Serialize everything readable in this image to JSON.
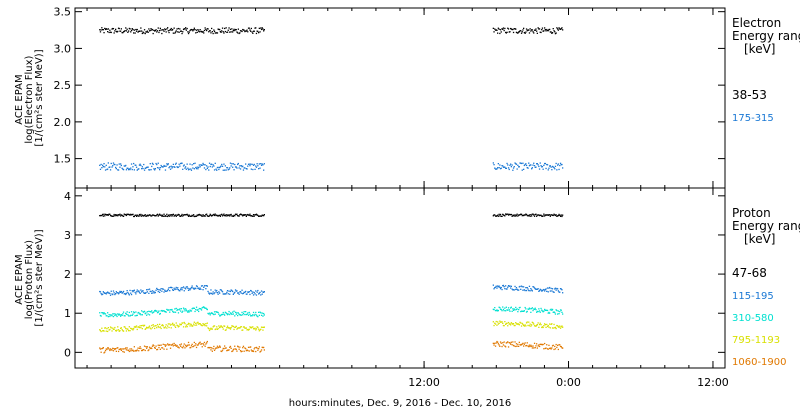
{
  "chart_data": [
    {
      "type": "scatter",
      "ylabel_lines": [
        "ACE EPAM",
        "log(Electron Flux)",
        "[1/(cm²s ster MeV)]"
      ],
      "ylim": [
        1.1,
        3.55
      ],
      "yticks": [
        1.5,
        2.0,
        2.5,
        3.0,
        3.5
      ],
      "ytick_labels": [
        "1.5",
        "2.0",
        "2.5",
        "3.0",
        "3.5"
      ],
      "legend_title": [
        "Electron",
        "Energy ranges",
        "[keV]"
      ],
      "series": [
        {
          "name": "38-53",
          "color": "#000000",
          "value": 3.25,
          "noise": 0.04
        },
        {
          "name": "175-315",
          "color": "#1a78d4",
          "value": 1.4,
          "noise": 0.05
        }
      ],
      "data_segments_hours": [
        [
          -15,
          -1.3
        ],
        [
          17.7,
          23.5
        ]
      ]
    },
    {
      "type": "scatter",
      "ylabel_lines": [
        "ACE EPAM",
        "log(Proton Flux)",
        "[1/(cm²s ster MeV)]"
      ],
      "ylim": [
        -0.4,
        4.2
      ],
      "yticks": [
        0,
        1,
        2,
        3,
        4
      ],
      "ytick_labels": [
        "0",
        "1",
        "2",
        "3",
        "4"
      ],
      "legend_title": [
        "Proton",
        "Energy ranges",
        "[keV]"
      ],
      "series": [
        {
          "name": "47-68",
          "color": "#000000",
          "value": 3.52,
          "noise": 0.03
        },
        {
          "name": "115-195",
          "color": "#1a78d4",
          "value": 1.6,
          "noise": 0.06
        },
        {
          "name": "310-580",
          "color": "#00e0d0",
          "value": 1.05,
          "noise": 0.06
        },
        {
          "name": "795-1193",
          "color": "#d8e000",
          "value": 0.68,
          "noise": 0.06
        },
        {
          "name": "1060-1900",
          "color": "#e07800",
          "value": 0.15,
          "noise": 0.07
        }
      ],
      "data_segments_hours": [
        [
          -15,
          -1.3
        ],
        [
          17.7,
          23.5
        ]
      ]
    }
  ],
  "x_axis": {
    "range_hours": [
      -17,
      37
    ],
    "tick_hours": [
      12,
      24,
      36
    ],
    "tick_labels": [
      "12:00",
      "0:00",
      "12:00"
    ],
    "xlabel": "hours:minutes, Dec.  9, 2016 - Dec. 10, 2016"
  }
}
